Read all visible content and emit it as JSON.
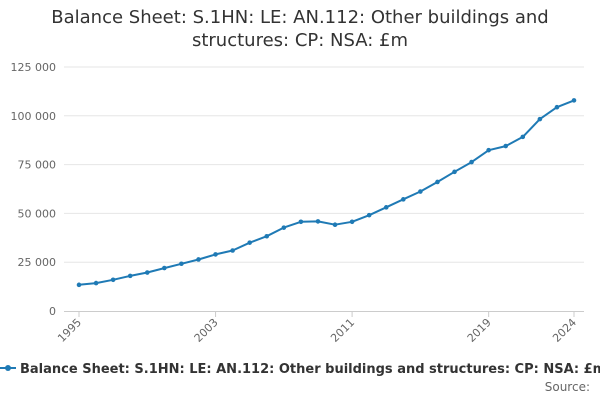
{
  "chart_data": {
    "type": "line",
    "title": "Balance Sheet: S.1HN: LE: AN.112: Other buildings and structures: CP: NSA: £m",
    "xlabel": "",
    "ylabel": "",
    "x": [
      1995,
      1996,
      1997,
      1998,
      1999,
      2000,
      2001,
      2002,
      2003,
      2004,
      2005,
      2006,
      2007,
      2008,
      2009,
      2010,
      2011,
      2012,
      2013,
      2014,
      2015,
      2016,
      2017,
      2018,
      2019,
      2020,
      2021,
      2022,
      2023,
      2024
    ],
    "x_tick_labels": [
      "1995",
      "2003",
      "2011",
      "2019",
      "2024"
    ],
    "y_tick_labels": [
      "0",
      "25 000",
      "50 000",
      "75 000",
      "100 000",
      "125 000"
    ],
    "ylim": [
      0,
      125000
    ],
    "grid": "horizontal",
    "legend_position": "bottom",
    "series": [
      {
        "name": "Balance Sheet: S.1HN: LE: AN.112: Other buildings and structures: CP: NSA: £m",
        "color": "#1f7ab5",
        "values": [
          13400,
          14300,
          16000,
          18000,
          19700,
          22000,
          24200,
          26400,
          29000,
          31000,
          35000,
          38300,
          42700,
          45700,
          45900,
          44200,
          45700,
          49100,
          53100,
          57200,
          61200,
          66100,
          71300,
          76300,
          82400,
          84500,
          89200,
          98300,
          104400,
          107900
        ]
      }
    ]
  },
  "legend": {
    "label": "Balance Sheet: S.1HN: LE: AN.112: Other buildings and structures: CP: NSA: £m"
  },
  "source": {
    "label": "Source:"
  }
}
